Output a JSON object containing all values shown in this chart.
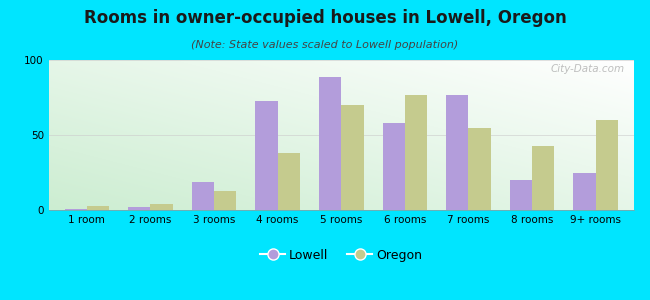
{
  "title": "Rooms in owner-occupied houses in Lowell, Oregon",
  "subtitle": "(Note: State values scaled to Lowell population)",
  "categories": [
    "1 room",
    "2 rooms",
    "3 rooms",
    "4 rooms",
    "5 rooms",
    "6 rooms",
    "7 rooms",
    "8 rooms",
    "9+ rooms"
  ],
  "lowell_values": [
    1,
    2,
    19,
    73,
    89,
    58,
    77,
    20,
    25
  ],
  "oregon_values": [
    3,
    4,
    13,
    38,
    70,
    77,
    55,
    43,
    60
  ],
  "lowell_color": "#b39ddb",
  "oregon_color": "#c5cb8e",
  "background_color": "#00e5ff",
  "ylim": [
    0,
    100
  ],
  "yticks": [
    0,
    50,
    100
  ],
  "watermark": "City-Data.com",
  "title_fontsize": 12,
  "subtitle_fontsize": 8,
  "legend_fontsize": 9,
  "tick_fontsize": 7.5
}
